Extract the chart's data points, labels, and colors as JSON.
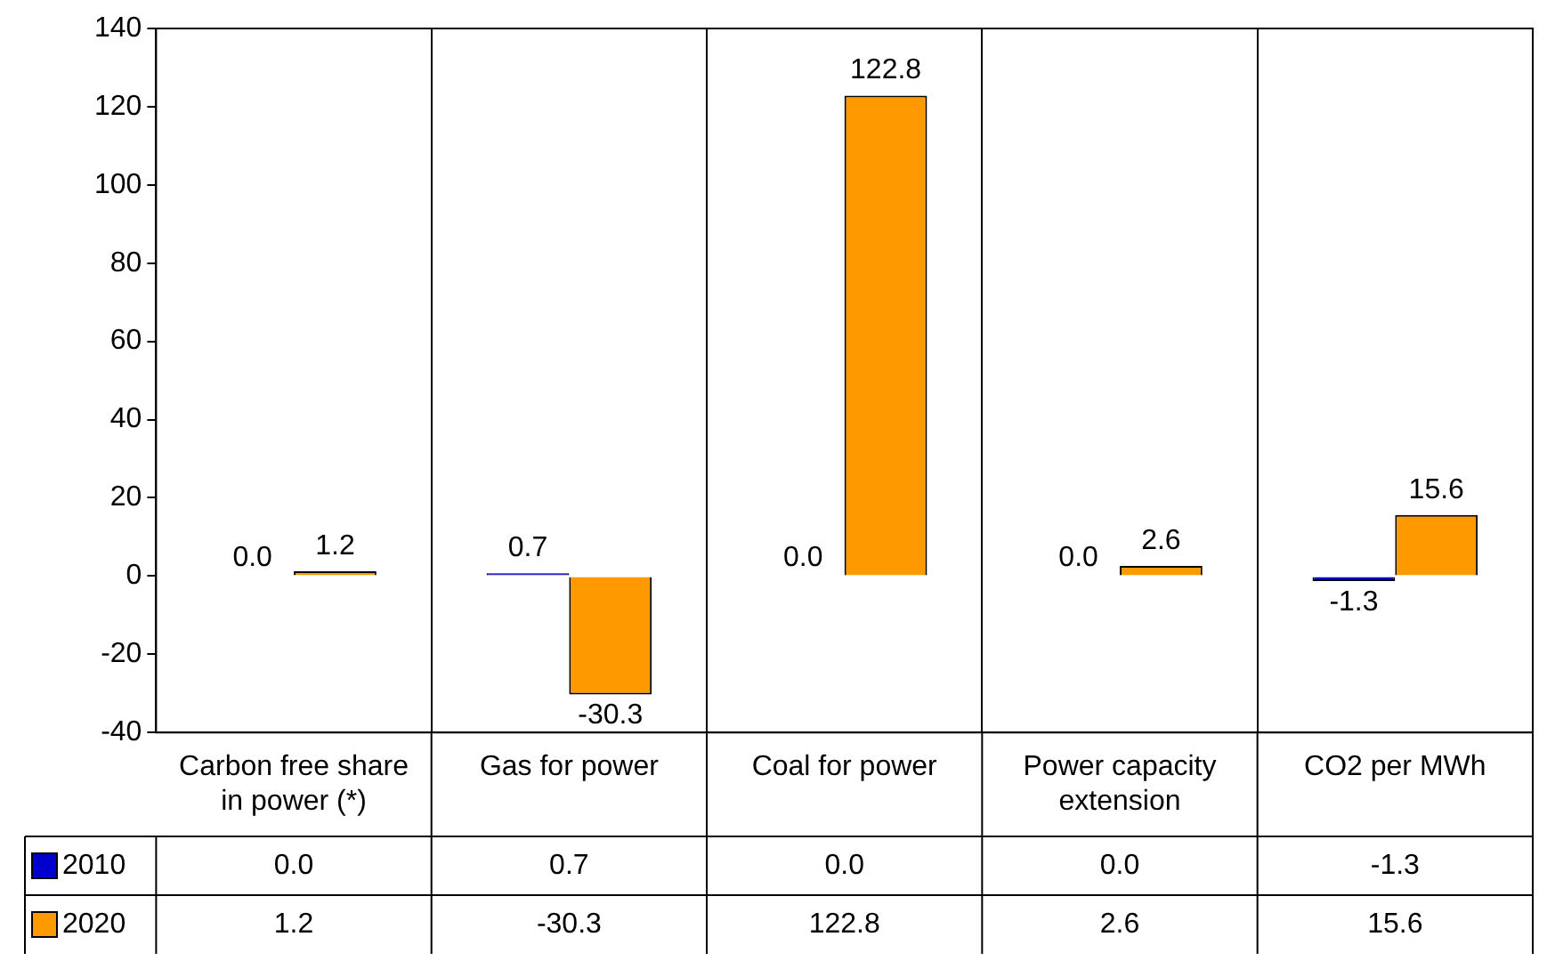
{
  "chart_data": {
    "type": "bar",
    "categories": [
      "Carbon free share in power (*)",
      "Gas for power",
      "Coal for power",
      "Power capacity extension",
      "CO2 per MWh"
    ],
    "series": [
      {
        "name": "2010",
        "color": "#0000cc",
        "values": [
          0.0,
          0.7,
          0.0,
          0.0,
          -1.3
        ],
        "value_labels": [
          "0.0",
          "0.7",
          "0.0",
          "0.0",
          "-1.3"
        ]
      },
      {
        "name": "2020",
        "color": "#ff9900",
        "values": [
          1.2,
          -30.3,
          122.8,
          2.6,
          15.6
        ],
        "value_labels": [
          "1.2",
          "-30.3",
          "122.8",
          "2.6",
          "15.6"
        ]
      }
    ],
    "ylim": [
      -40,
      140
    ],
    "yticks": [
      -40,
      -20,
      0,
      20,
      40,
      60,
      80,
      100,
      120,
      140
    ],
    "grid": "x",
    "legend": "bottom left"
  }
}
